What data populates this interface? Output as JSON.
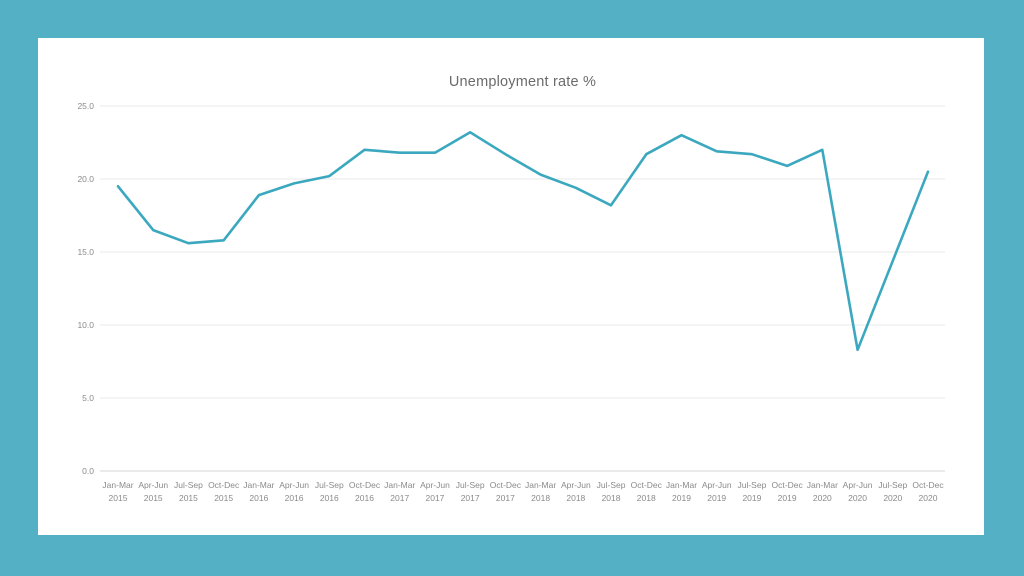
{
  "page": {
    "background_color": "#54b0c5",
    "panel_color": "#ffffff"
  },
  "chart_data": {
    "type": "line",
    "title": "Unemployment rate %",
    "categories": [
      {
        "quarter": "Jan-Mar",
        "year": "2015"
      },
      {
        "quarter": "Apr-Jun",
        "year": "2015"
      },
      {
        "quarter": "Jul-Sep",
        "year": "2015"
      },
      {
        "quarter": "Oct-Dec",
        "year": "2015"
      },
      {
        "quarter": "Jan-Mar",
        "year": "2016"
      },
      {
        "quarter": "Apr-Jun",
        "year": "2016"
      },
      {
        "quarter": "Jul-Sep",
        "year": "2016"
      },
      {
        "quarter": "Oct-Dec",
        "year": "2016"
      },
      {
        "quarter": "Jan-Mar",
        "year": "2017"
      },
      {
        "quarter": "Apr-Jun",
        "year": "2017"
      },
      {
        "quarter": "Jul-Sep",
        "year": "2017"
      },
      {
        "quarter": "Oct-Dec",
        "year": "2017"
      },
      {
        "quarter": "Jan-Mar",
        "year": "2018"
      },
      {
        "quarter": "Apr-Jun",
        "year": "2018"
      },
      {
        "quarter": "Jul-Sep",
        "year": "2018"
      },
      {
        "quarter": "Oct-Dec",
        "year": "2018"
      },
      {
        "quarter": "Jan-Mar",
        "year": "2019"
      },
      {
        "quarter": "Apr-Jun",
        "year": "2019"
      },
      {
        "quarter": "Jul-Sep",
        "year": "2019"
      },
      {
        "quarter": "Oct-Dec",
        "year": "2019"
      },
      {
        "quarter": "Jan-Mar",
        "year": "2020"
      },
      {
        "quarter": "Apr-Jun",
        "year": "2020"
      },
      {
        "quarter": "Jul-Sep",
        "year": "2020"
      },
      {
        "quarter": "Oct-Dec",
        "year": "2020"
      }
    ],
    "values": [
      19.5,
      16.5,
      15.6,
      15.8,
      18.9,
      19.7,
      20.2,
      22.0,
      21.8,
      21.8,
      23.2,
      21.7,
      20.3,
      19.4,
      18.2,
      21.7,
      23.0,
      21.9,
      21.7,
      20.9,
      22.0,
      8.3,
      14.4,
      20.5
    ],
    "xlabel": "",
    "ylabel": "",
    "ylim": [
      0,
      25
    ],
    "ytick_step": 5,
    "ytick_labels": [
      "0.0",
      "5.0",
      "10.0",
      "15.0",
      "20.0",
      "25.0"
    ],
    "grid": true,
    "legend_position": "none",
    "line_color": "#3ba8bf",
    "gridline_color": "#e8e8e8",
    "axis_line_color": "#d6d6d6",
    "tick_label_color": "#8a8a8a",
    "title_color": "#6b6b6b"
  }
}
